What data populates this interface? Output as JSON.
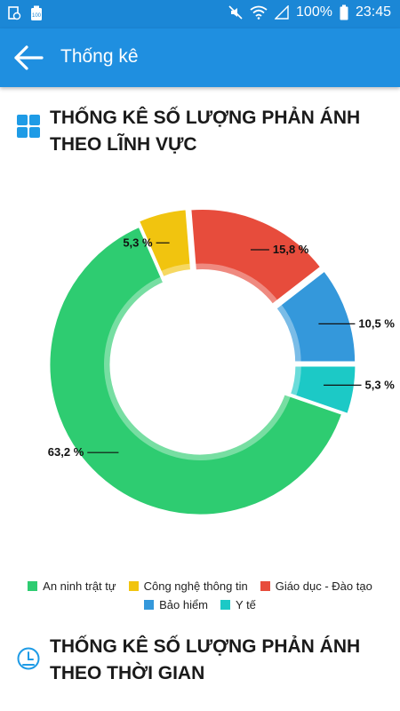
{
  "status": {
    "battery": "100%",
    "time": "23:45",
    "battery_mini": "100"
  },
  "header": {
    "title": "Thống kê"
  },
  "section1": {
    "title": "THỐNG KÊ SỐ LƯỢNG PHẢN ÁNH THEO LĨNH VỰC"
  },
  "section2": {
    "title": "THỐNG KÊ SỐ LƯỢNG PHẢN ÁNH THEO THỜI GIAN"
  },
  "chart_data": {
    "type": "pie",
    "donut": true,
    "title": "",
    "categories": [
      "An ninh trật tự",
      "Công nghệ thông tin",
      "Giáo dục - Đào tạo",
      "Bảo hiểm",
      "Y tế"
    ],
    "values": [
      63.2,
      5.3,
      15.8,
      10.5,
      5.3
    ],
    "labels": [
      "63,2 %",
      "5,3 %",
      "15,8 %",
      "10,5 %",
      "5,3 %"
    ],
    "colors": [
      "#2ecc71",
      "#f1c40f",
      "#e74c3c",
      "#3498db",
      "#1cc9c6"
    ],
    "legend_position": "bottom"
  }
}
